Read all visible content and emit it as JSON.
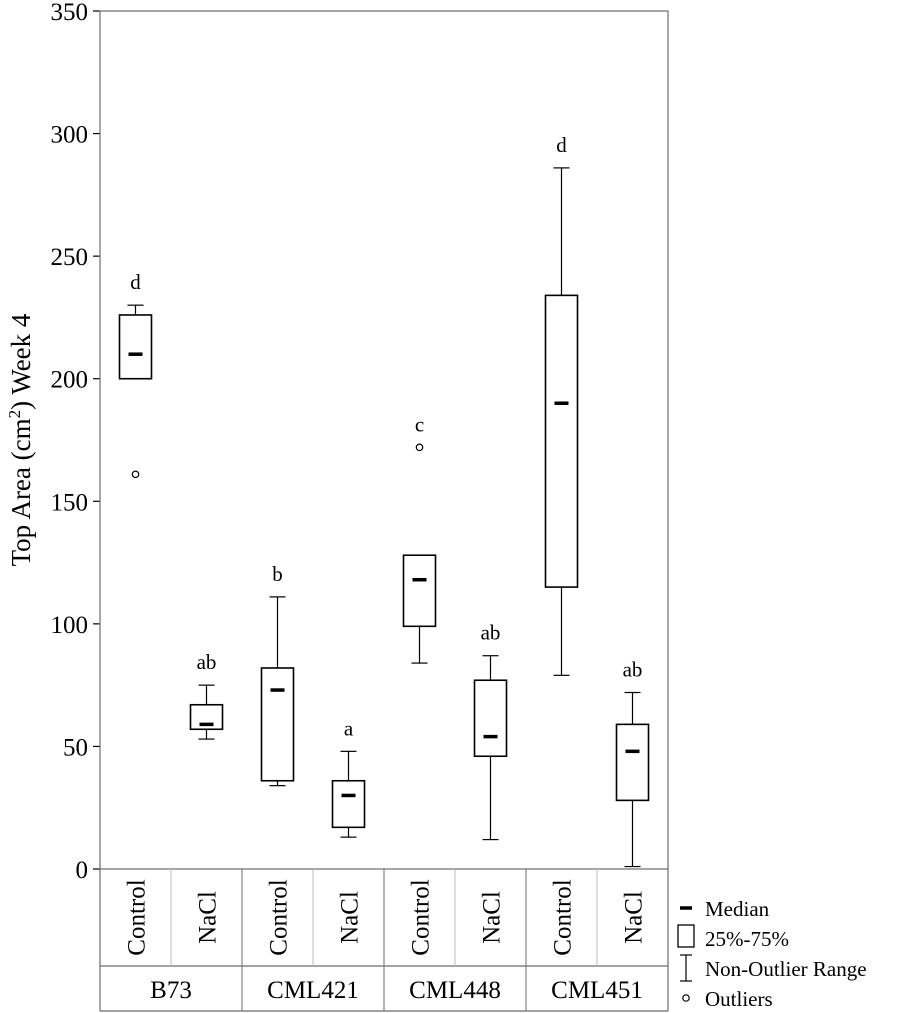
{
  "chart_data": {
    "type": "box",
    "ylabel": {
      "prefix": "Top Area (cm",
      "superscript": "2",
      "suffix": ") Week 4"
    },
    "ylim": [
      0,
      350
    ],
    "yticks": [
      0,
      50,
      100,
      150,
      200,
      250,
      300,
      350
    ],
    "grid": false,
    "treatments": [
      "Control",
      "NaCl"
    ],
    "groups": [
      "B73",
      "CML421",
      "CML448",
      "CML451"
    ],
    "boxes": [
      {
        "group": "B73",
        "treatment": "Control",
        "whisker_low": 200,
        "q1": 200,
        "median": 210,
        "q3": 226,
        "whisker_high": 230,
        "outliers": [
          161
        ],
        "letter": "d"
      },
      {
        "group": "B73",
        "treatment": "NaCl",
        "whisker_low": 53,
        "q1": 57,
        "median": 59,
        "q3": 67,
        "whisker_high": 75,
        "outliers": [],
        "letter": "ab"
      },
      {
        "group": "CML421",
        "treatment": "Control",
        "whisker_low": 34,
        "q1": 36,
        "median": 73,
        "q3": 82,
        "whisker_high": 111,
        "outliers": [],
        "letter": "b"
      },
      {
        "group": "CML421",
        "treatment": "NaCl",
        "whisker_low": 13,
        "q1": 17,
        "median": 30,
        "q3": 36,
        "whisker_high": 48,
        "outliers": [],
        "letter": "a"
      },
      {
        "group": "CML448",
        "treatment": "Control",
        "whisker_low": 84,
        "q1": 99,
        "median": 118,
        "q3": 128,
        "whisker_high": 128,
        "outliers": [
          172
        ],
        "letter": "c"
      },
      {
        "group": "CML448",
        "treatment": "NaCl",
        "whisker_low": 12,
        "q1": 46,
        "median": 54,
        "q3": 77,
        "whisker_high": 87,
        "outliers": [],
        "letter": "ab"
      },
      {
        "group": "CML451",
        "treatment": "Control",
        "whisker_low": 79,
        "q1": 115,
        "median": 190,
        "q3": 234,
        "whisker_high": 286,
        "outliers": [],
        "letter": "d"
      },
      {
        "group": "CML451",
        "treatment": "NaCl",
        "whisker_low": 1,
        "q1": 28,
        "median": 48,
        "q3": 59,
        "whisker_high": 72,
        "outliers": [],
        "letter": "ab"
      }
    ],
    "legend": {
      "placement": "bottom-right",
      "items": [
        {
          "symbol": "median",
          "label": "Median"
        },
        {
          "symbol": "box",
          "label": "25%-75%"
        },
        {
          "symbol": "whisker",
          "label": "Non-Outlier Range"
        },
        {
          "symbol": "outlier",
          "label": "Outliers"
        }
      ]
    }
  }
}
